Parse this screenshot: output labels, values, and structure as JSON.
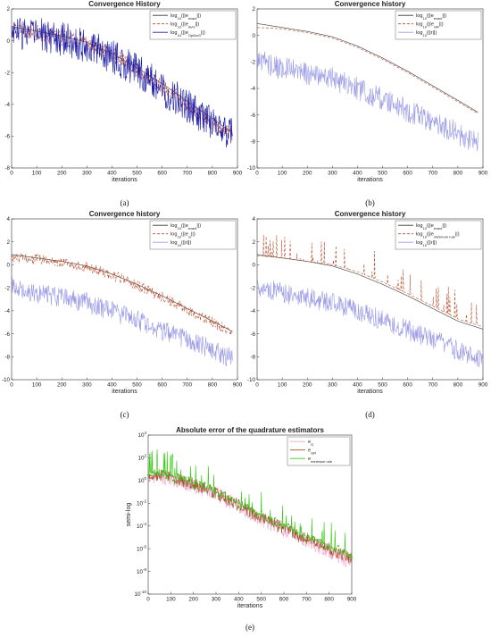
{
  "colors": {
    "blue": "#1a1aaa",
    "blue_light": "#9a9ae6",
    "red": "#b84a2a",
    "red_light": "#f0a0a0",
    "black": "#333333",
    "pink": "#f3a6c8",
    "brown": "#a0522d",
    "green": "#33cc11"
  },
  "chart_data": [
    {
      "panel": "(a)",
      "type": "line",
      "title": "Convergence History",
      "xlabel": "iterations",
      "ylabel": "",
      "xlim": [
        0,
        900
      ],
      "ylim": [
        -8,
        2
      ],
      "xticks": [
        "0",
        "100",
        "200",
        "300",
        "400",
        "500",
        "600",
        "700",
        "800",
        "900"
      ],
      "yticks": [
        "2",
        "0",
        "-2",
        "-4",
        "-6",
        "-8"
      ],
      "legend_position": "top-right",
      "legend": [
        {
          "base": "log",
          "sub1": "10",
          "mid": "(||e",
          "sub2": "exact",
          "end": "||)"
        },
        {
          "base": "log",
          "sub1": "10",
          "mid": "(||e",
          "sub2": "AvG",
          "end": "||)"
        },
        {
          "base": "log",
          "sub1": "10",
          "mid": "(||e",
          "sub2": "OptAvG",
          "end": "||)"
        }
      ],
      "series": [
        {
          "color": "black",
          "dash": "",
          "x": [
            0,
            100,
            200,
            300,
            400,
            500,
            600,
            700,
            800,
            880
          ],
          "y": [
            0.9,
            0.6,
            0.3,
            -0.1,
            -0.8,
            -1.7,
            -2.7,
            -3.8,
            -4.9,
            -5.8
          ]
        },
        {
          "color": "red",
          "dash": "3,2",
          "x": [
            0,
            100,
            200,
            300,
            400,
            500,
            600,
            700,
            800,
            880
          ],
          "y": [
            0.7,
            0.5,
            0.2,
            -0.2,
            -0.9,
            -1.8,
            -2.9,
            -4.0,
            -5.1,
            -5.9
          ],
          "noise": 1.0
        },
        {
          "color": "blue",
          "dash": "",
          "x": [
            0,
            100,
            200,
            300,
            400,
            500,
            600,
            700,
            800,
            880
          ],
          "y": [
            0.6,
            0.4,
            0.1,
            -0.3,
            -1.0,
            -1.9,
            -3.0,
            -4.1,
            -5.2,
            -6.0
          ],
          "noise": 2.2
        }
      ],
      "caption": "(a)"
    },
    {
      "panel": "(b)",
      "type": "line",
      "title": "Convergence history",
      "xlabel": "iterations",
      "ylabel": "",
      "xlim": [
        0,
        900
      ],
      "ylim": [
        -10,
        2
      ],
      "xticks": [
        "0",
        "100",
        "200",
        "300",
        "400",
        "500",
        "600",
        "700",
        "800",
        "900"
      ],
      "yticks": [
        "2",
        "0",
        "-2",
        "-4",
        "-6",
        "-8",
        "-10"
      ],
      "legend_position": "top-right",
      "legend": [
        {
          "base": "log",
          "sub1": "10",
          "mid": "(||e",
          "sub2": "exact",
          "end": "||)"
        },
        {
          "base": "log",
          "sub1": "10",
          "mid": "(||e",
          "sub2": "GR",
          "end": "||)"
        },
        {
          "base": "log",
          "sub1": "10",
          "mid": "(||r||)",
          "sub2": "",
          "end": ""
        }
      ],
      "series": [
        {
          "color": "black",
          "dash": "",
          "x": [
            0,
            100,
            200,
            300,
            400,
            500,
            600,
            700,
            800,
            880
          ],
          "y": [
            0.9,
            0.6,
            0.3,
            -0.1,
            -0.8,
            -1.7,
            -2.7,
            -3.8,
            -4.9,
            -5.8
          ]
        },
        {
          "color": "red",
          "dash": "3,2",
          "x": [
            0,
            100,
            200,
            300,
            400,
            500,
            600,
            700,
            800,
            880
          ],
          "y": [
            0.6,
            0.5,
            0.2,
            -0.2,
            -0.9,
            -1.8,
            -2.8,
            -3.9,
            -5.0,
            -5.9
          ]
        },
        {
          "color": "blue_light",
          "dash": "",
          "x": [
            0,
            100,
            200,
            300,
            400,
            500,
            600,
            700,
            800,
            880
          ],
          "y": [
            -1.8,
            -2.5,
            -2.9,
            -3.3,
            -4.0,
            -4.8,
            -5.7,
            -6.5,
            -7.4,
            -8.2
          ],
          "noise": 1.8
        }
      ],
      "caption": "(b)"
    },
    {
      "panel": "(c)",
      "type": "line",
      "title": "Convergence history",
      "xlabel": "iterations",
      "ylabel": "",
      "xlim": [
        0,
        900
      ],
      "ylim": [
        -10,
        4
      ],
      "xticks": [
        "0",
        "100",
        "200",
        "300",
        "400",
        "500",
        "600",
        "700",
        "800",
        "900"
      ],
      "yticks": [
        "4",
        "2",
        "0",
        "-2",
        "-4",
        "-6",
        "-8",
        "-10"
      ],
      "legend_position": "top-right",
      "legend": [
        {
          "base": "log",
          "sub1": "10",
          "mid": "(||e",
          "sub2": "exact",
          "end": "||)"
        },
        {
          "base": "log",
          "sub1": "10",
          "mid": "(||e",
          "sub2": "G",
          "end": "||)"
        },
        {
          "base": "log",
          "sub1": "10",
          "mid": "(||r||)",
          "sub2": "",
          "end": ""
        }
      ],
      "series": [
        {
          "color": "black",
          "dash": "",
          "x": [
            0,
            100,
            200,
            300,
            400,
            500,
            600,
            700,
            800,
            880
          ],
          "y": [
            0.9,
            0.6,
            0.3,
            -0.1,
            -0.8,
            -1.7,
            -2.7,
            -3.8,
            -4.9,
            -5.8
          ]
        },
        {
          "color": "red",
          "dash": "3,2",
          "x": [
            0,
            100,
            200,
            300,
            400,
            500,
            600,
            700,
            800,
            880
          ],
          "y": [
            0.6,
            0.5,
            0.2,
            -0.2,
            -0.9,
            -1.8,
            -2.8,
            -3.9,
            -5.0,
            -5.9
          ],
          "noise": 0.9
        },
        {
          "color": "blue_light",
          "dash": "",
          "x": [
            0,
            100,
            200,
            300,
            400,
            500,
            600,
            700,
            800,
            880
          ],
          "y": [
            -1.8,
            -2.5,
            -2.9,
            -3.3,
            -4.0,
            -4.8,
            -5.7,
            -6.5,
            -7.4,
            -8.2
          ],
          "noise": 1.8
        }
      ],
      "caption": "(c)"
    },
    {
      "panel": "(d)",
      "type": "line",
      "title": "Convergence history",
      "xlabel": "iterations",
      "ylabel": "",
      "xlim": [
        0,
        900
      ],
      "ylim": [
        -10,
        4
      ],
      "xticks": [
        "0",
        "100",
        "200",
        "300",
        "400",
        "500",
        "600",
        "700",
        "800",
        "900"
      ],
      "yticks": [
        "4",
        "2",
        "0",
        "-2",
        "-4",
        "-6",
        "-8",
        "-10"
      ],
      "legend_position": "top-right",
      "legend": [
        {
          "base": "log",
          "sub1": "10",
          "mid": "(||e",
          "sub2": "exact",
          "end": "||)"
        },
        {
          "base": "log",
          "sub1": "10",
          "mid": "(||e",
          "sub2": "minimum rule",
          "end": "||)"
        },
        {
          "base": "log",
          "sub1": "10",
          "mid": "(||r||)",
          "sub2": "",
          "end": ""
        }
      ],
      "series": [
        {
          "color": "black",
          "dash": "",
          "x": [
            0,
            100,
            200,
            300,
            400,
            500,
            600,
            700,
            800,
            900
          ],
          "y": [
            0.9,
            0.6,
            0.3,
            -0.1,
            -0.8,
            -1.7,
            -2.7,
            -3.8,
            -4.9,
            -5.6
          ]
        },
        {
          "color": "red",
          "dash": "3,2",
          "x": [
            0,
            100,
            200,
            300,
            400,
            500,
            600,
            700,
            800,
            900
          ],
          "y": [
            0.8,
            0.6,
            0.3,
            0.0,
            -0.6,
            -1.5,
            -2.5,
            -3.6,
            -4.7,
            -5.4
          ],
          "spikes": 2.5
        },
        {
          "color": "blue_light",
          "dash": "",
          "x": [
            0,
            100,
            200,
            300,
            400,
            500,
            600,
            700,
            800,
            900
          ],
          "y": [
            -1.8,
            -2.5,
            -2.9,
            -3.3,
            -4.0,
            -4.8,
            -5.7,
            -6.5,
            -7.4,
            -8.2
          ],
          "noise": 1.8
        }
      ],
      "caption": "(d)"
    },
    {
      "panel": "(e)",
      "type": "line",
      "title": "Absolute error of the quadrature estimators",
      "xlabel": "iterations",
      "ylabel": "semi-log",
      "log_y": true,
      "xlim": [
        0,
        900
      ],
      "ylim": [
        -10,
        4
      ],
      "xticks": [
        "0",
        "100",
        "200",
        "300",
        "400",
        "500",
        "600",
        "700",
        "800",
        "900"
      ],
      "yticks": [
        {
          "base": "10",
          "exp": "4"
        },
        {
          "base": "10",
          "exp": "2"
        },
        {
          "base": "10",
          "exp": "0"
        },
        {
          "base": "10",
          "exp": "-2"
        },
        {
          "base": "10",
          "exp": "-4"
        },
        {
          "base": "10",
          "exp": "-6"
        },
        {
          "base": "10",
          "exp": "-8"
        },
        {
          "base": "10",
          "exp": "-10"
        }
      ],
      "legend_position": "top-right",
      "legend": [
        {
          "base": "e",
          "sub1": "G",
          "mid": "",
          "sub2": "",
          "end": ""
        },
        {
          "base": "e",
          "sub1": "GR",
          "mid": "",
          "sub2": "",
          "end": ""
        },
        {
          "base": "e",
          "sub1": "minimum rule",
          "mid": "",
          "sub2": "",
          "end": ""
        }
      ],
      "series": [
        {
          "color": "pink",
          "dash": "",
          "x": [
            0,
            100,
            200,
            300,
            400,
            500,
            600,
            700,
            800,
            900
          ],
          "y": [
            0.5,
            0.2,
            -0.4,
            -1.2,
            -2.3,
            -3.4,
            -4.3,
            -5.2,
            -6.2,
            -7.3
          ],
          "noise": 1.4
        },
        {
          "color": "brown",
          "dash": "",
          "x": [
            0,
            100,
            200,
            300,
            400,
            500,
            600,
            700,
            800,
            900
          ],
          "y": [
            0.6,
            0.3,
            -0.3,
            -1.1,
            -2.2,
            -3.3,
            -4.2,
            -5.1,
            -6.0,
            -6.9
          ],
          "noise": 1.1
        },
        {
          "color": "green",
          "dash": "",
          "marker": true,
          "x": [
            0,
            100,
            200,
            300,
            400,
            500,
            600,
            700,
            800,
            900
          ],
          "y": [
            0.7,
            0.4,
            -0.2,
            -1.0,
            -2.0,
            -3.1,
            -4.0,
            -4.9,
            -5.8,
            -6.6
          ],
          "spikes": 2.2
        }
      ],
      "caption": "(e)"
    }
  ]
}
